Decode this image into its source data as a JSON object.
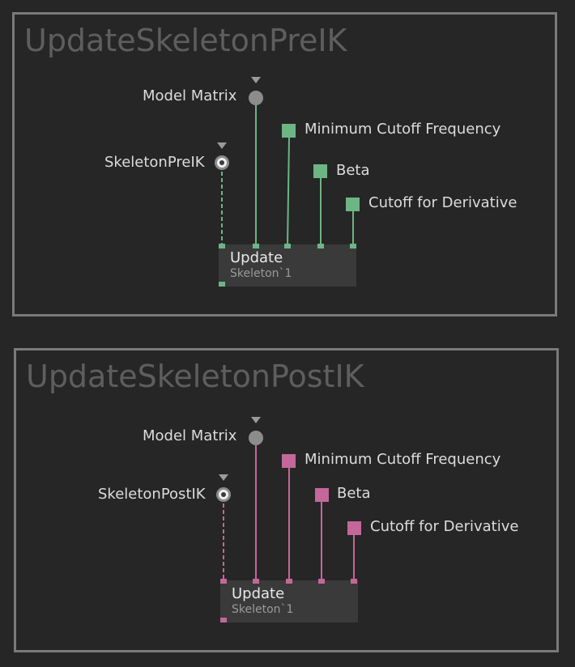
{
  "groups": [
    {
      "title": "UpdateSkeletonPreIK",
      "accent": "#6db584",
      "inputs": {
        "model_matrix": "Model Matrix",
        "skeleton_source": "SkeletonPreIK",
        "min_cutoff": "Minimum Cutoff Frequency",
        "beta": "Beta",
        "cutoff_derivative": "Cutoff for Derivative"
      },
      "node": {
        "title": "Update",
        "subtitle": "Skeleton`1"
      }
    },
    {
      "title": "UpdateSkeletonPostIK",
      "accent": "#c4679a",
      "inputs": {
        "model_matrix": "Model Matrix",
        "skeleton_source": "SkeletonPostIK",
        "min_cutoff": "Minimum Cutoff Frequency",
        "beta": "Beta",
        "cutoff_derivative": "Cutoff for Derivative"
      },
      "node": {
        "title": "Update",
        "subtitle": "Skeleton`1"
      }
    }
  ],
  "colors": {
    "background": "#262626",
    "frame_border": "#7a7a7a",
    "model_matrix_pin": "#8c8c8c",
    "node_fill": "#3a3a3a"
  },
  "icons": {
    "model_matrix": "gray-circle-pin-icon",
    "skeleton_source": "target-circle-pin-icon",
    "float_param": "square-pin-icon",
    "expand_arrow": "triangle-down-icon"
  }
}
